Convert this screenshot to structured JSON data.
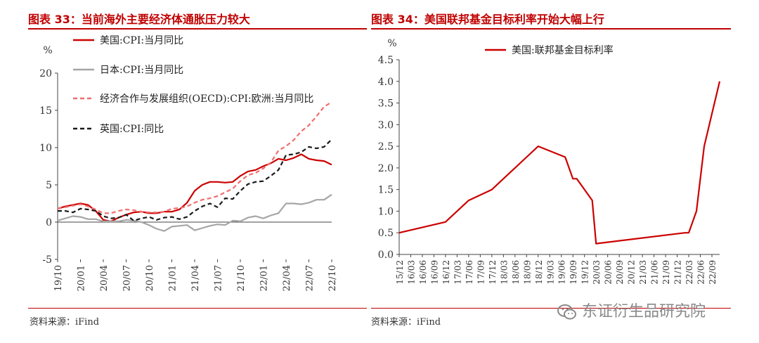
{
  "left_figure": {
    "title": "图表 33：当前海外主要经济体通胀压力较大",
    "source": "资料来源：iFind"
  },
  "right_figure": {
    "title": "图表 34：美国联邦基金目标利率开始大幅上行",
    "source": "资料来源：iFind"
  },
  "watermark": {
    "text": "东证衍生品研究院",
    "icon": "wechat-icon"
  },
  "colors": {
    "accent": "#c00000",
    "red": "#cc0000",
    "gray": "#a6a6a6",
    "pink": "#ef6e6e",
    "black": "#1a1a1a"
  },
  "chart_data": [
    {
      "type": "line",
      "ylabel": "%",
      "ylim": [
        -5,
        20
      ],
      "yticks": [
        -5,
        0,
        5,
        10,
        15,
        20
      ],
      "xlim": [
        "2019-10",
        "2022-10"
      ],
      "xticks": [
        "19/10",
        "20/01",
        "20/04",
        "20/07",
        "20/10",
        "21/01",
        "21/04",
        "21/07",
        "21/10",
        "22/01",
        "22/04",
        "22/07",
        "22/10"
      ],
      "grid": false,
      "legend": "top-left",
      "series": [
        {
          "name": "美国:CPI:当月同比",
          "style": "solid",
          "color": "#cc0000",
          "x": [
            "2019-10",
            "2019-11",
            "2019-12",
            "2020-01",
            "2020-02",
            "2020-03",
            "2020-04",
            "2020-05",
            "2020-06",
            "2020-07",
            "2020-08",
            "2020-09",
            "2020-10",
            "2020-11",
            "2020-12",
            "2021-01",
            "2021-02",
            "2021-03",
            "2021-04",
            "2021-05",
            "2021-06",
            "2021-07",
            "2021-08",
            "2021-09",
            "2021-10",
            "2021-11",
            "2021-12",
            "2022-01",
            "2022-02",
            "2022-03",
            "2022-04",
            "2022-05",
            "2022-06",
            "2022-07",
            "2022-08",
            "2022-09",
            "2022-10"
          ],
          "values": [
            1.8,
            2.1,
            2.3,
            2.5,
            2.3,
            1.5,
            0.3,
            0.1,
            0.6,
            1.0,
            1.3,
            1.4,
            1.2,
            1.2,
            1.4,
            1.4,
            1.7,
            2.6,
            4.2,
            5.0,
            5.4,
            5.4,
            5.3,
            5.4,
            6.2,
            6.8,
            7.0,
            7.5,
            7.9,
            8.5,
            8.3,
            8.6,
            9.1,
            8.5,
            8.3,
            8.2,
            7.7
          ]
        },
        {
          "name": "日本:CPI:当月同比",
          "style": "solid",
          "color": "#a6a6a6",
          "x": [
            "2019-10",
            "2019-11",
            "2019-12",
            "2020-01",
            "2020-02",
            "2020-03",
            "2020-04",
            "2020-05",
            "2020-06",
            "2020-07",
            "2020-08",
            "2020-09",
            "2020-10",
            "2020-11",
            "2020-12",
            "2021-01",
            "2021-02",
            "2021-03",
            "2021-04",
            "2021-05",
            "2021-06",
            "2021-07",
            "2021-08",
            "2021-09",
            "2021-10",
            "2021-11",
            "2021-12",
            "2022-01",
            "2022-02",
            "2022-03",
            "2022-04",
            "2022-05",
            "2022-06",
            "2022-07",
            "2022-08",
            "2022-09",
            "2022-10"
          ],
          "values": [
            0.2,
            0.5,
            0.8,
            0.7,
            0.4,
            0.4,
            0.1,
            0.1,
            0.1,
            0.3,
            0.2,
            0.0,
            -0.4,
            -0.9,
            -1.2,
            -0.6,
            -0.5,
            -0.4,
            -1.1,
            -0.8,
            -0.5,
            -0.3,
            -0.4,
            0.2,
            0.1,
            0.6,
            0.8,
            0.5,
            0.9,
            1.2,
            2.5,
            2.5,
            2.4,
            2.6,
            3.0,
            3.0,
            3.7
          ]
        },
        {
          "name": "经济合作与发展组织(OECD):CPI:欧洲:当月同比",
          "style": "dashed",
          "color": "#ef6e6e",
          "x": [
            "2019-10",
            "2019-11",
            "2019-12",
            "2020-01",
            "2020-02",
            "2020-03",
            "2020-04",
            "2020-05",
            "2020-06",
            "2020-07",
            "2020-08",
            "2020-09",
            "2020-10",
            "2020-11",
            "2020-12",
            "2021-01",
            "2021-02",
            "2021-03",
            "2021-04",
            "2021-05",
            "2021-06",
            "2021-07",
            "2021-08",
            "2021-09",
            "2021-10",
            "2021-11",
            "2021-12",
            "2022-01",
            "2022-02",
            "2022-03",
            "2022-04",
            "2022-05",
            "2022-06",
            "2022-07",
            "2022-08",
            "2022-09",
            "2022-10"
          ],
          "values": [
            1.8,
            2.0,
            2.2,
            2.4,
            2.1,
            1.7,
            1.2,
            1.2,
            1.5,
            1.7,
            1.6,
            1.4,
            1.3,
            1.3,
            1.4,
            1.8,
            1.9,
            2.1,
            2.6,
            3.0,
            3.2,
            3.5,
            4.0,
            4.5,
            5.5,
            6.3,
            6.6,
            7.2,
            8.0,
            9.6,
            10.2,
            11.0,
            12.2,
            13.0,
            14.2,
            15.5,
            16.1
          ]
        },
        {
          "name": "英国:CPI:同比",
          "style": "dashed",
          "color": "#1a1a1a",
          "x": [
            "2019-10",
            "2019-11",
            "2019-12",
            "2020-01",
            "2020-02",
            "2020-03",
            "2020-04",
            "2020-05",
            "2020-06",
            "2020-07",
            "2020-08",
            "2020-09",
            "2020-10",
            "2020-11",
            "2020-12",
            "2021-01",
            "2021-02",
            "2021-03",
            "2021-04",
            "2021-05",
            "2021-06",
            "2021-07",
            "2021-08",
            "2021-09",
            "2021-10",
            "2021-11",
            "2021-12",
            "2022-01",
            "2022-02",
            "2022-03",
            "2022-04",
            "2022-05",
            "2022-06",
            "2022-07",
            "2022-08",
            "2022-09",
            "2022-10"
          ],
          "values": [
            1.5,
            1.5,
            1.3,
            1.8,
            1.7,
            1.5,
            0.8,
            0.5,
            0.6,
            1.0,
            0.2,
            0.5,
            0.7,
            0.3,
            0.6,
            0.7,
            0.4,
            0.7,
            1.5,
            2.1,
            2.5,
            2.0,
            3.2,
            3.1,
            4.2,
            5.1,
            5.4,
            5.5,
            6.2,
            7.0,
            9.0,
            9.1,
            9.4,
            10.1,
            9.9,
            10.1,
            11.1
          ]
        }
      ]
    },
    {
      "type": "line",
      "ylabel": "%",
      "ylim": [
        0,
        4.5
      ],
      "yticks": [
        "0.0",
        "0.5",
        "1.0",
        "1.5",
        "2.0",
        "2.5",
        "3.0",
        "3.5",
        "4.0",
        "4.5"
      ],
      "xlim": [
        "2015-12",
        "2022-11"
      ],
      "xticks": [
        "15/12",
        "16/03",
        "16/06",
        "16/09",
        "16/12",
        "17/03",
        "17/06",
        "17/09",
        "17/12",
        "18/03",
        "18/06",
        "18/09",
        "18/12",
        "19/03",
        "19/06",
        "19/09",
        "19/12",
        "20/03",
        "20/06",
        "20/09",
        "20/12",
        "21/03",
        "21/06",
        "21/09",
        "21/12",
        "22/03",
        "22/06",
        "22/09"
      ],
      "grid": false,
      "legend": "top-left",
      "series": [
        {
          "name": "美国:联邦基金目标利率",
          "style": "solid",
          "color": "#cc0000",
          "x": [
            "2015-12",
            "2016-12",
            "2017-03",
            "2017-06",
            "2017-12",
            "2018-03",
            "2018-06",
            "2018-09",
            "2018-12",
            "2019-07",
            "2019-08",
            "2019-09",
            "2019-10",
            "2020-02",
            "2020-03",
            "2022-02",
            "2022-03",
            "2022-05",
            "2022-06",
            "2022-07",
            "2022-09",
            "2022-11"
          ],
          "values": [
            0.5,
            0.75,
            1.0,
            1.25,
            1.5,
            1.75,
            2.0,
            2.25,
            2.5,
            2.25,
            2.0,
            1.75,
            1.75,
            1.25,
            0.25,
            0.5,
            0.5,
            1.0,
            1.75,
            2.5,
            3.25,
            4.0
          ]
        }
      ]
    }
  ]
}
